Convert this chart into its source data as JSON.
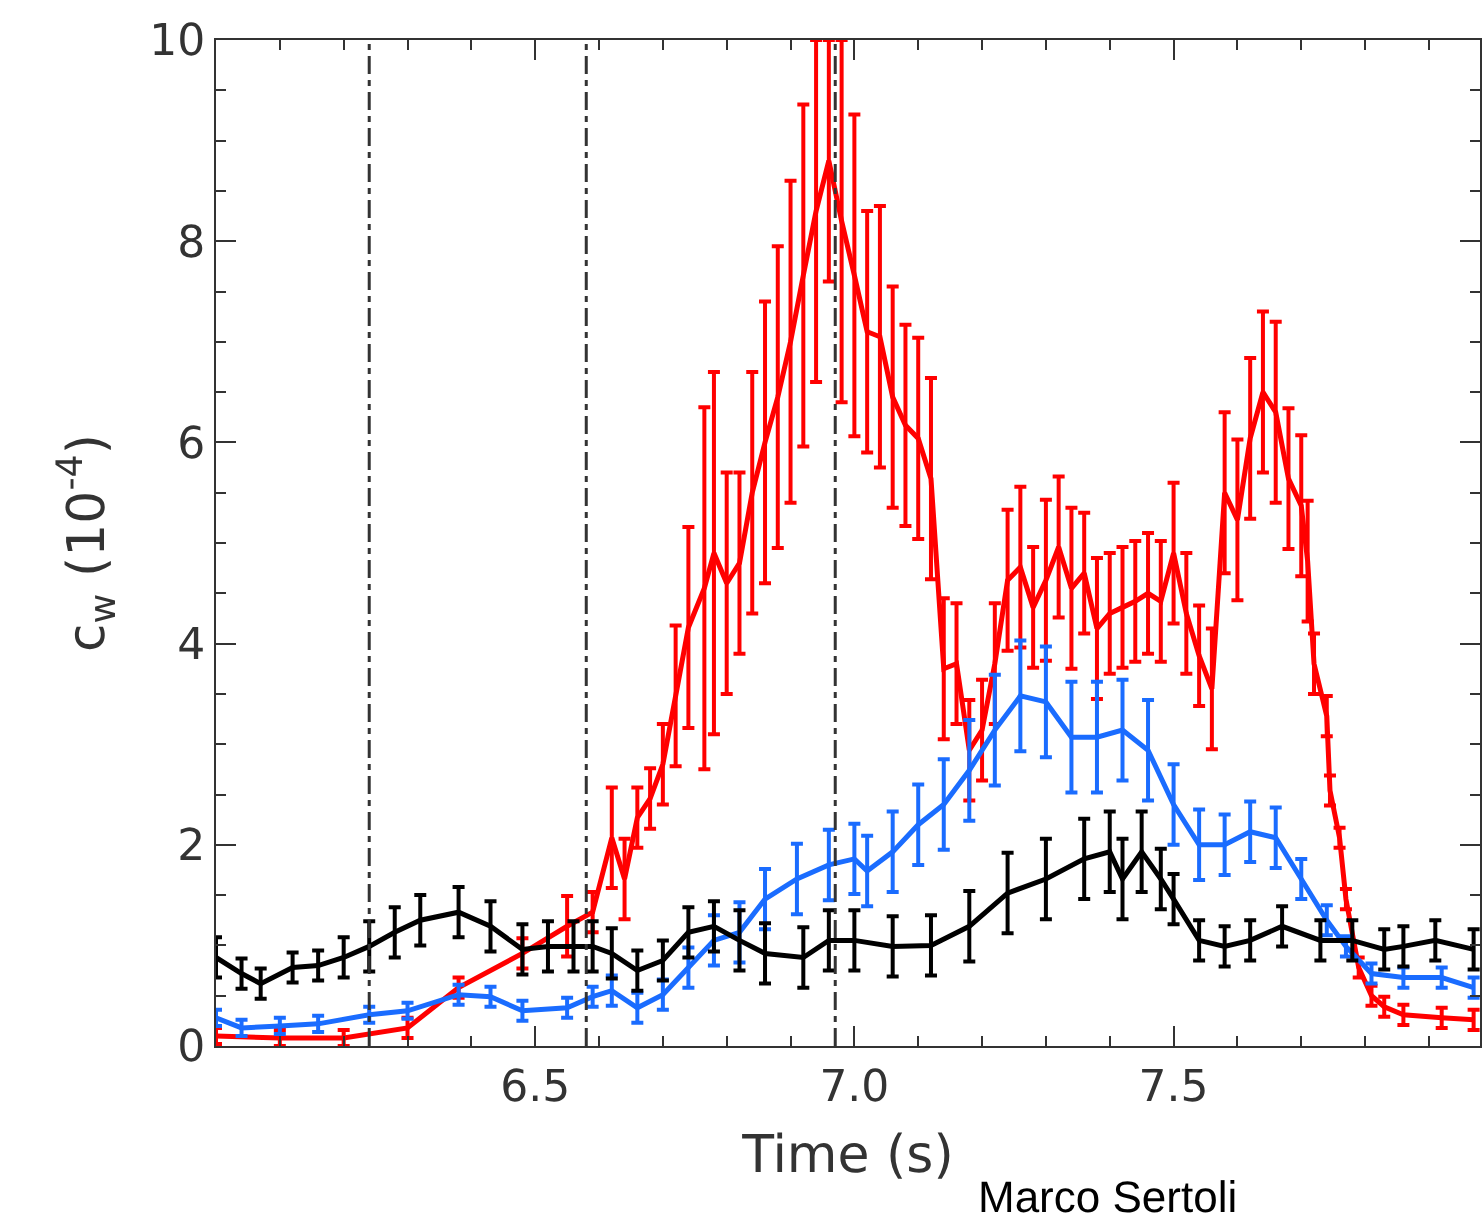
{
  "chart_data": {
    "type": "line",
    "xlabel": "Time (s)",
    "ylabel": "c$_{w}$ (10$^{-4}$)",
    "xlim": [
      6.0,
      7.98
    ],
    "xticks": [
      6.5,
      {
        "value": 7,
        "label": "7.0"
      },
      7.5
    ],
    "ylim": [
      0,
      10
    ],
    "yticks": [
      0,
      2,
      4,
      6,
      8,
      10
    ],
    "grid": false,
    "line_style": "solid",
    "ref_lines": [
      {
        "axis": "x",
        "value": 6.24,
        "color": "#333333",
        "line_style": "dashdot"
      },
      {
        "axis": "x",
        "value": 6.58,
        "color": "#333333",
        "line_style": "dashdot"
      },
      {
        "axis": "x",
        "value": 6.97,
        "color": "#333333",
        "line_style": "dashdot"
      }
    ],
    "annotations": [
      "Marco Sertoli"
    ],
    "series": [
      {
        "color": "#ff0000",
        "x": [
          6.0,
          6.1,
          6.2,
          6.3,
          6.38,
          6.48,
          6.55,
          6.59,
          6.62,
          6.64,
          6.66,
          6.68,
          6.7,
          6.72,
          6.74,
          6.765,
          6.78,
          6.8,
          6.82,
          6.84,
          6.86,
          6.88,
          6.9,
          6.92,
          6.94,
          6.96,
          6.98,
          7.0,
          7.02,
          7.04,
          7.06,
          7.08,
          7.1,
          7.12,
          7.14,
          7.16,
          7.18,
          7.2,
          7.22,
          7.24,
          7.26,
          7.28,
          7.3,
          7.32,
          7.34,
          7.36,
          7.38,
          7.4,
          7.42,
          7.44,
          7.46,
          7.48,
          7.5,
          7.52,
          7.54,
          7.56,
          7.58,
          7.6,
          7.62,
          7.64,
          7.66,
          7.68,
          7.7,
          7.71,
          7.72,
          7.74,
          7.745,
          7.76,
          7.77,
          7.79,
          7.81,
          7.83,
          7.86,
          7.92,
          7.97
        ],
        "values": [
          0.1,
          0.08,
          0.08,
          0.18,
          0.58,
          0.92,
          1.19,
          1.33,
          2.07,
          1.66,
          2.27,
          2.46,
          2.8,
          3.48,
          4.16,
          4.55,
          4.9,
          4.6,
          4.8,
          5.5,
          6.0,
          6.45,
          7.0,
          7.66,
          8.3,
          8.8,
          8.2,
          7.66,
          7.1,
          7.05,
          6.45,
          6.17,
          6.04,
          5.64,
          3.75,
          3.8,
          2.94,
          3.14,
          3.8,
          4.63,
          4.76,
          4.36,
          4.63,
          4.96,
          4.55,
          4.7,
          4.15,
          4.3,
          4.36,
          4.42,
          4.5,
          4.42,
          4.9,
          4.3,
          3.88,
          3.55,
          5.5,
          5.23,
          6.04,
          6.5,
          6.3,
          5.64,
          5.37,
          4.82,
          3.8,
          3.28,
          2.54,
          2.07,
          1.46,
          0.78,
          0.5,
          0.39,
          0.31,
          0.28,
          0.26
        ],
        "errors": [
          0.08,
          0.08,
          0.08,
          0.1,
          0.1,
          0.15,
          0.3,
          0.2,
          0.5,
          0.4,
          0.3,
          0.3,
          0.4,
          0.7,
          1.0,
          1.8,
          1.8,
          1.1,
          0.9,
          1.2,
          1.4,
          1.5,
          1.6,
          1.7,
          1.7,
          1.2,
          1.8,
          1.6,
          1.2,
          1.3,
          1.1,
          1.0,
          1.0,
          1.0,
          0.7,
          0.6,
          0.5,
          0.5,
          0.6,
          0.7,
          0.8,
          0.6,
          0.8,
          0.7,
          0.8,
          0.6,
          0.7,
          0.6,
          0.6,
          0.6,
          0.6,
          0.6,
          0.7,
          0.6,
          0.5,
          0.6,
          0.8,
          0.8,
          0.8,
          0.8,
          0.9,
          0.7,
          0.7,
          0.6,
          0.3,
          0.2,
          0.15,
          0.1,
          0.1,
          0.1,
          0.1,
          0.1,
          0.1,
          0.1,
          0.1
        ]
      },
      {
        "color": "#1a6cff",
        "x": [
          6.0,
          6.04,
          6.1,
          6.16,
          6.24,
          6.3,
          6.38,
          6.43,
          6.48,
          6.55,
          6.59,
          6.62,
          6.66,
          6.7,
          6.74,
          6.78,
          6.82,
          6.86,
          6.91,
          6.96,
          7.0,
          7.02,
          7.06,
          7.1,
          7.14,
          7.18,
          7.22,
          7.26,
          7.3,
          7.34,
          7.38,
          7.42,
          7.46,
          7.5,
          7.54,
          7.58,
          7.62,
          7.66,
          7.7,
          7.74,
          7.77,
          7.81,
          7.86,
          7.92,
          7.97
        ],
        "values": [
          0.28,
          0.18,
          0.2,
          0.22,
          0.31,
          0.35,
          0.51,
          0.49,
          0.35,
          0.38,
          0.49,
          0.55,
          0.38,
          0.51,
          0.78,
          1.05,
          1.13,
          1.46,
          1.66,
          1.8,
          1.86,
          1.74,
          1.93,
          2.2,
          2.4,
          2.74,
          3.14,
          3.48,
          3.42,
          3.07,
          3.07,
          3.14,
          2.94,
          2.4,
          2.0,
          2.0,
          2.13,
          2.07,
          1.66,
          1.25,
          0.99,
          0.72,
          0.68,
          0.68,
          0.58
        ],
        "errors": [
          0.08,
          0.08,
          0.08,
          0.08,
          0.08,
          0.08,
          0.1,
          0.1,
          0.1,
          0.1,
          0.1,
          0.15,
          0.15,
          0.15,
          0.2,
          0.25,
          0.3,
          0.3,
          0.35,
          0.35,
          0.35,
          0.35,
          0.4,
          0.4,
          0.45,
          0.5,
          0.55,
          0.55,
          0.55,
          0.55,
          0.55,
          0.5,
          0.5,
          0.4,
          0.35,
          0.3,
          0.3,
          0.3,
          0.2,
          0.15,
          0.1,
          0.1,
          0.1,
          0.1,
          0.1
        ]
      },
      {
        "color": "#000000",
        "x": [
          6.0,
          6.04,
          6.07,
          6.12,
          6.16,
          6.2,
          6.24,
          6.28,
          6.32,
          6.38,
          6.43,
          6.48,
          6.52,
          6.56,
          6.59,
          6.62,
          6.66,
          6.7,
          6.74,
          6.78,
          6.82,
          6.86,
          6.92,
          6.96,
          7.0,
          7.06,
          7.12,
          7.18,
          7.24,
          7.3,
          7.36,
          7.4,
          7.42,
          7.45,
          7.48,
          7.5,
          7.54,
          7.58,
          7.62,
          7.67,
          7.73,
          7.78,
          7.83,
          7.86,
          7.91,
          7.97
        ],
        "values": [
          0.88,
          0.72,
          0.62,
          0.78,
          0.8,
          0.88,
          0.99,
          1.13,
          1.25,
          1.33,
          1.19,
          0.96,
          0.99,
          0.99,
          0.99,
          0.92,
          0.75,
          0.85,
          1.13,
          1.19,
          1.05,
          0.92,
          0.88,
          1.05,
          1.05,
          0.99,
          1.0,
          1.19,
          1.52,
          1.66,
          1.86,
          1.93,
          1.66,
          1.93,
          1.66,
          1.46,
          1.05,
          0.99,
          1.05,
          1.19,
          1.05,
          1.05,
          0.96,
          0.99,
          1.05,
          0.96
        ],
        "errors": [
          0.2,
          0.15,
          0.15,
          0.15,
          0.15,
          0.2,
          0.25,
          0.25,
          0.25,
          0.25,
          0.25,
          0.25,
          0.25,
          0.25,
          0.25,
          0.25,
          0.2,
          0.2,
          0.25,
          0.25,
          0.3,
          0.3,
          0.3,
          0.3,
          0.3,
          0.3,
          0.3,
          0.35,
          0.4,
          0.4,
          0.4,
          0.4,
          0.4,
          0.4,
          0.3,
          0.25,
          0.2,
          0.2,
          0.2,
          0.2,
          0.2,
          0.2,
          0.2,
          0.2,
          0.2,
          0.2
        ]
      }
    ]
  }
}
